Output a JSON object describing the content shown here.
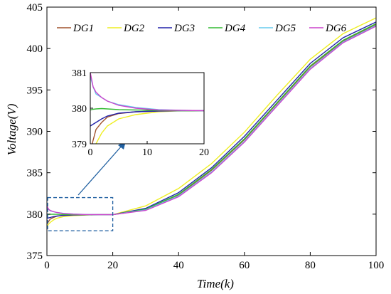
{
  "chart_data": {
    "type": "line",
    "xlabel": "Time(k)",
    "ylabel": "Voltage(V)",
    "xlim": [
      0,
      100
    ],
    "ylim": [
      375,
      405
    ],
    "xticks": [
      0,
      20,
      40,
      60,
      80,
      100
    ],
    "yticks": [
      375,
      380,
      385,
      390,
      395,
      400,
      405
    ],
    "legend_placement": "top",
    "series": [
      {
        "name": "DG1",
        "color": "#a0522d",
        "x": [
          0,
          0.5,
          1,
          2,
          3,
          5,
          8,
          12,
          16,
          20,
          30,
          40,
          50,
          60,
          70,
          80,
          90,
          100
        ],
        "y": [
          378.8,
          379.1,
          379.4,
          379.6,
          379.75,
          379.85,
          379.9,
          379.92,
          379.93,
          379.93,
          380.5,
          382.3,
          385.3,
          389.0,
          393.4,
          397.8,
          400.9,
          402.9
        ]
      },
      {
        "name": "DG2",
        "color": "#eeee22",
        "x": [
          0,
          0.5,
          1,
          2,
          3,
          5,
          8,
          12,
          16,
          20,
          30,
          40,
          50,
          60,
          70,
          80,
          90,
          100
        ],
        "y": [
          378.5,
          378.8,
          379.0,
          379.3,
          379.5,
          379.7,
          379.82,
          379.9,
          379.93,
          379.93,
          381.0,
          383.1,
          386.1,
          389.9,
          394.4,
          398.7,
          401.8,
          403.7
        ]
      },
      {
        "name": "DG3",
        "color": "#2222aa",
        "x": [
          0,
          0.5,
          1,
          2,
          3,
          5,
          8,
          12,
          16,
          20,
          30,
          40,
          50,
          60,
          70,
          80,
          90,
          100
        ],
        "y": [
          379.5,
          379.55,
          379.6,
          379.7,
          379.78,
          379.86,
          379.9,
          379.92,
          379.93,
          379.93,
          380.7,
          382.6,
          385.6,
          389.4,
          393.8,
          398.2,
          401.3,
          403.2
        ]
      },
      {
        "name": "DG4",
        "color": "#33bb33",
        "x": [
          0,
          0.5,
          1,
          2,
          3,
          5,
          8,
          12,
          16,
          20,
          30,
          40,
          50,
          60,
          70,
          80,
          90,
          100
        ],
        "y": [
          379.95,
          379.97,
          379.98,
          379.99,
          379.98,
          379.96,
          379.95,
          379.94,
          379.93,
          379.93,
          380.6,
          382.4,
          385.4,
          389.1,
          393.5,
          397.9,
          401.0,
          403.0
        ]
      },
      {
        "name": "DG5",
        "color": "#66ccee",
        "x": [
          0,
          0.5,
          1,
          2,
          3,
          5,
          8,
          12,
          16,
          20,
          30,
          40,
          50,
          60,
          70,
          80,
          90,
          100
        ],
        "y": [
          380.9,
          380.6,
          380.4,
          380.3,
          380.2,
          380.1,
          380.02,
          379.96,
          379.94,
          379.93,
          380.5,
          382.2,
          385.1,
          388.8,
          393.2,
          397.6,
          400.8,
          402.8
        ]
      },
      {
        "name": "DG6",
        "color": "#cc44cc",
        "x": [
          0,
          0.5,
          1,
          2,
          3,
          5,
          8,
          12,
          16,
          20,
          30,
          40,
          50,
          60,
          70,
          80,
          90,
          100
        ],
        "y": [
          381.0,
          380.6,
          380.45,
          380.3,
          380.2,
          380.08,
          380.0,
          379.95,
          379.94,
          379.93,
          380.45,
          382.1,
          385.0,
          388.7,
          393.1,
          397.5,
          400.7,
          402.7
        ]
      }
    ],
    "inset": {
      "xlim": [
        0,
        20
      ],
      "ylim": [
        379,
        381
      ],
      "xticks": [
        0,
        10,
        20
      ],
      "yticks": [
        379,
        380,
        381
      ],
      "zoom_xlim": [
        0,
        20
      ],
      "zoom_ylim": [
        378,
        382
      ]
    }
  }
}
